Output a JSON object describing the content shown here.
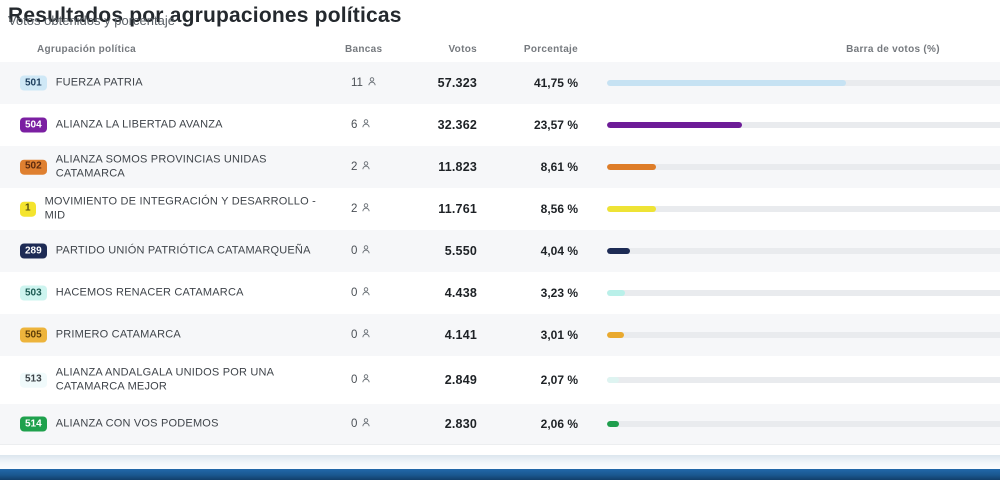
{
  "page": {
    "title": "Resultados por agrupaciones políticas",
    "subtitle": "Votos obtenidos y porcentaje"
  },
  "table": {
    "headers": {
      "party": "Agrupación política",
      "seats": "Bancas",
      "votes": "Votos",
      "percentage": "Porcentaje",
      "bar": "Barra de votos (%)"
    },
    "rows": [
      {
        "code": "501",
        "name": "FUERZA PATRIA",
        "seats": "11",
        "votes": "57.323",
        "pct_label": "41,75 %",
        "pct": 41.75,
        "badge_bg": "#cfe8f6",
        "badge_fg": "#1c3d5c",
        "bar_color": "#c6e2f3"
      },
      {
        "code": "504",
        "name": "ALIANZA LA LIBERTAD AVANZA",
        "seats": "6",
        "votes": "32.362",
        "pct_label": "23,57 %",
        "pct": 23.57,
        "badge_bg": "#7b1fa2",
        "badge_fg": "#ffffff",
        "bar_color": "#6d1c97"
      },
      {
        "code": "502",
        "name": "ALIANZA SOMOS PROVINCIAS UNIDAS CATAMARCA",
        "seats": "2",
        "votes": "11.823",
        "pct_label": "8,61 %",
        "pct": 8.61,
        "badge_bg": "#df8030",
        "badge_fg": "#5c2a0e",
        "bar_color": "#de7d28"
      },
      {
        "code": "1",
        "name": "MOVIMIENTO DE INTEGRACIÓN Y DESARROLLO - MID",
        "seats": "2",
        "votes": "11.761",
        "pct_label": "8,56 %",
        "pct": 8.56,
        "badge_bg": "#f4e42e",
        "badge_fg": "#55500f",
        "bar_color": "#eee335"
      },
      {
        "code": "289",
        "name": "PARTIDO UNIÓN PATRIÓTICA CATAMARQUEÑA",
        "seats": "0",
        "votes": "5.550",
        "pct_label": "4,04 %",
        "pct": 4.04,
        "badge_bg": "#1d2b55",
        "badge_fg": "#ffffff",
        "bar_color": "#1d2b55"
      },
      {
        "code": "503",
        "name": "HACEMOS RENACER CATAMARCA",
        "seats": "0",
        "votes": "4.438",
        "pct_label": "3,23 %",
        "pct": 3.23,
        "badge_bg": "#cdf4ef",
        "badge_fg": "#1b5a52",
        "bar_color": "#b9f0e9"
      },
      {
        "code": "505",
        "name": "PRIMERO CATAMARCA",
        "seats": "0",
        "votes": "4.141",
        "pct_label": "3,01 %",
        "pct": 3.01,
        "badge_bg": "#edb43c",
        "badge_fg": "#5d3d07",
        "bar_color": "#e9a92e"
      },
      {
        "code": "513",
        "name": "ALIANZA ANDALGALA UNIDOS POR UNA CATAMARCA MEJOR",
        "seats": "0",
        "votes": "2.849",
        "pct_label": "2,07 %",
        "pct": 2.07,
        "badge_bg": "#f0fafb",
        "badge_fg": "#3c4247",
        "bar_color": "#def4f1"
      },
      {
        "code": "514",
        "name": "ALIANZA CON VOS PODEMOS",
        "seats": "0",
        "votes": "2.830",
        "pct_label": "2,06 %",
        "pct": 2.06,
        "badge_bg": "#1fa14d",
        "badge_fg": "#ffffff",
        "bar_color": "#1f9e4d"
      }
    ]
  },
  "colors": {
    "row_alt_bg": "#f6f7f9",
    "bar_track": "#e9ebee",
    "footer_blue": "#1a578f"
  },
  "chart_data": {
    "type": "bar",
    "title": "Resultados por agrupaciones políticas",
    "subtitle": "Votos obtenidos y porcentaje",
    "categories": [
      "FUERZA PATRIA",
      "ALIANZA LA LIBERTAD AVANZA",
      "ALIANZA SOMOS PROVINCIAS UNIDAS CATAMARCA",
      "MOVIMIENTO DE INTEGRACIÓN Y DESARROLLO - MID",
      "PARTIDO UNIÓN PATRIÓTICA CATAMARQUEÑA",
      "HACEMOS RENACER CATAMARCA",
      "PRIMERO CATAMARCA",
      "ALIANZA ANDALGALA UNIDOS POR UNA CATAMARCA MEJOR",
      "ALIANZA CON VOS PODEMOS"
    ],
    "series": [
      {
        "name": "Votos",
        "values": [
          57323,
          32362,
          11823,
          11761,
          5550,
          4438,
          4141,
          2849,
          2830
        ]
      },
      {
        "name": "Porcentaje",
        "values": [
          41.75,
          23.57,
          8.61,
          8.56,
          4.04,
          3.23,
          3.01,
          2.07,
          2.06
        ]
      },
      {
        "name": "Bancas",
        "values": [
          11,
          6,
          2,
          2,
          0,
          0,
          0,
          0,
          0
        ]
      }
    ],
    "xlabel": "Barra de votos (%)",
    "ylabel": "Agrupación política",
    "xlim": [
      0,
      100
    ],
    "grid": false,
    "legend_position": "none"
  }
}
